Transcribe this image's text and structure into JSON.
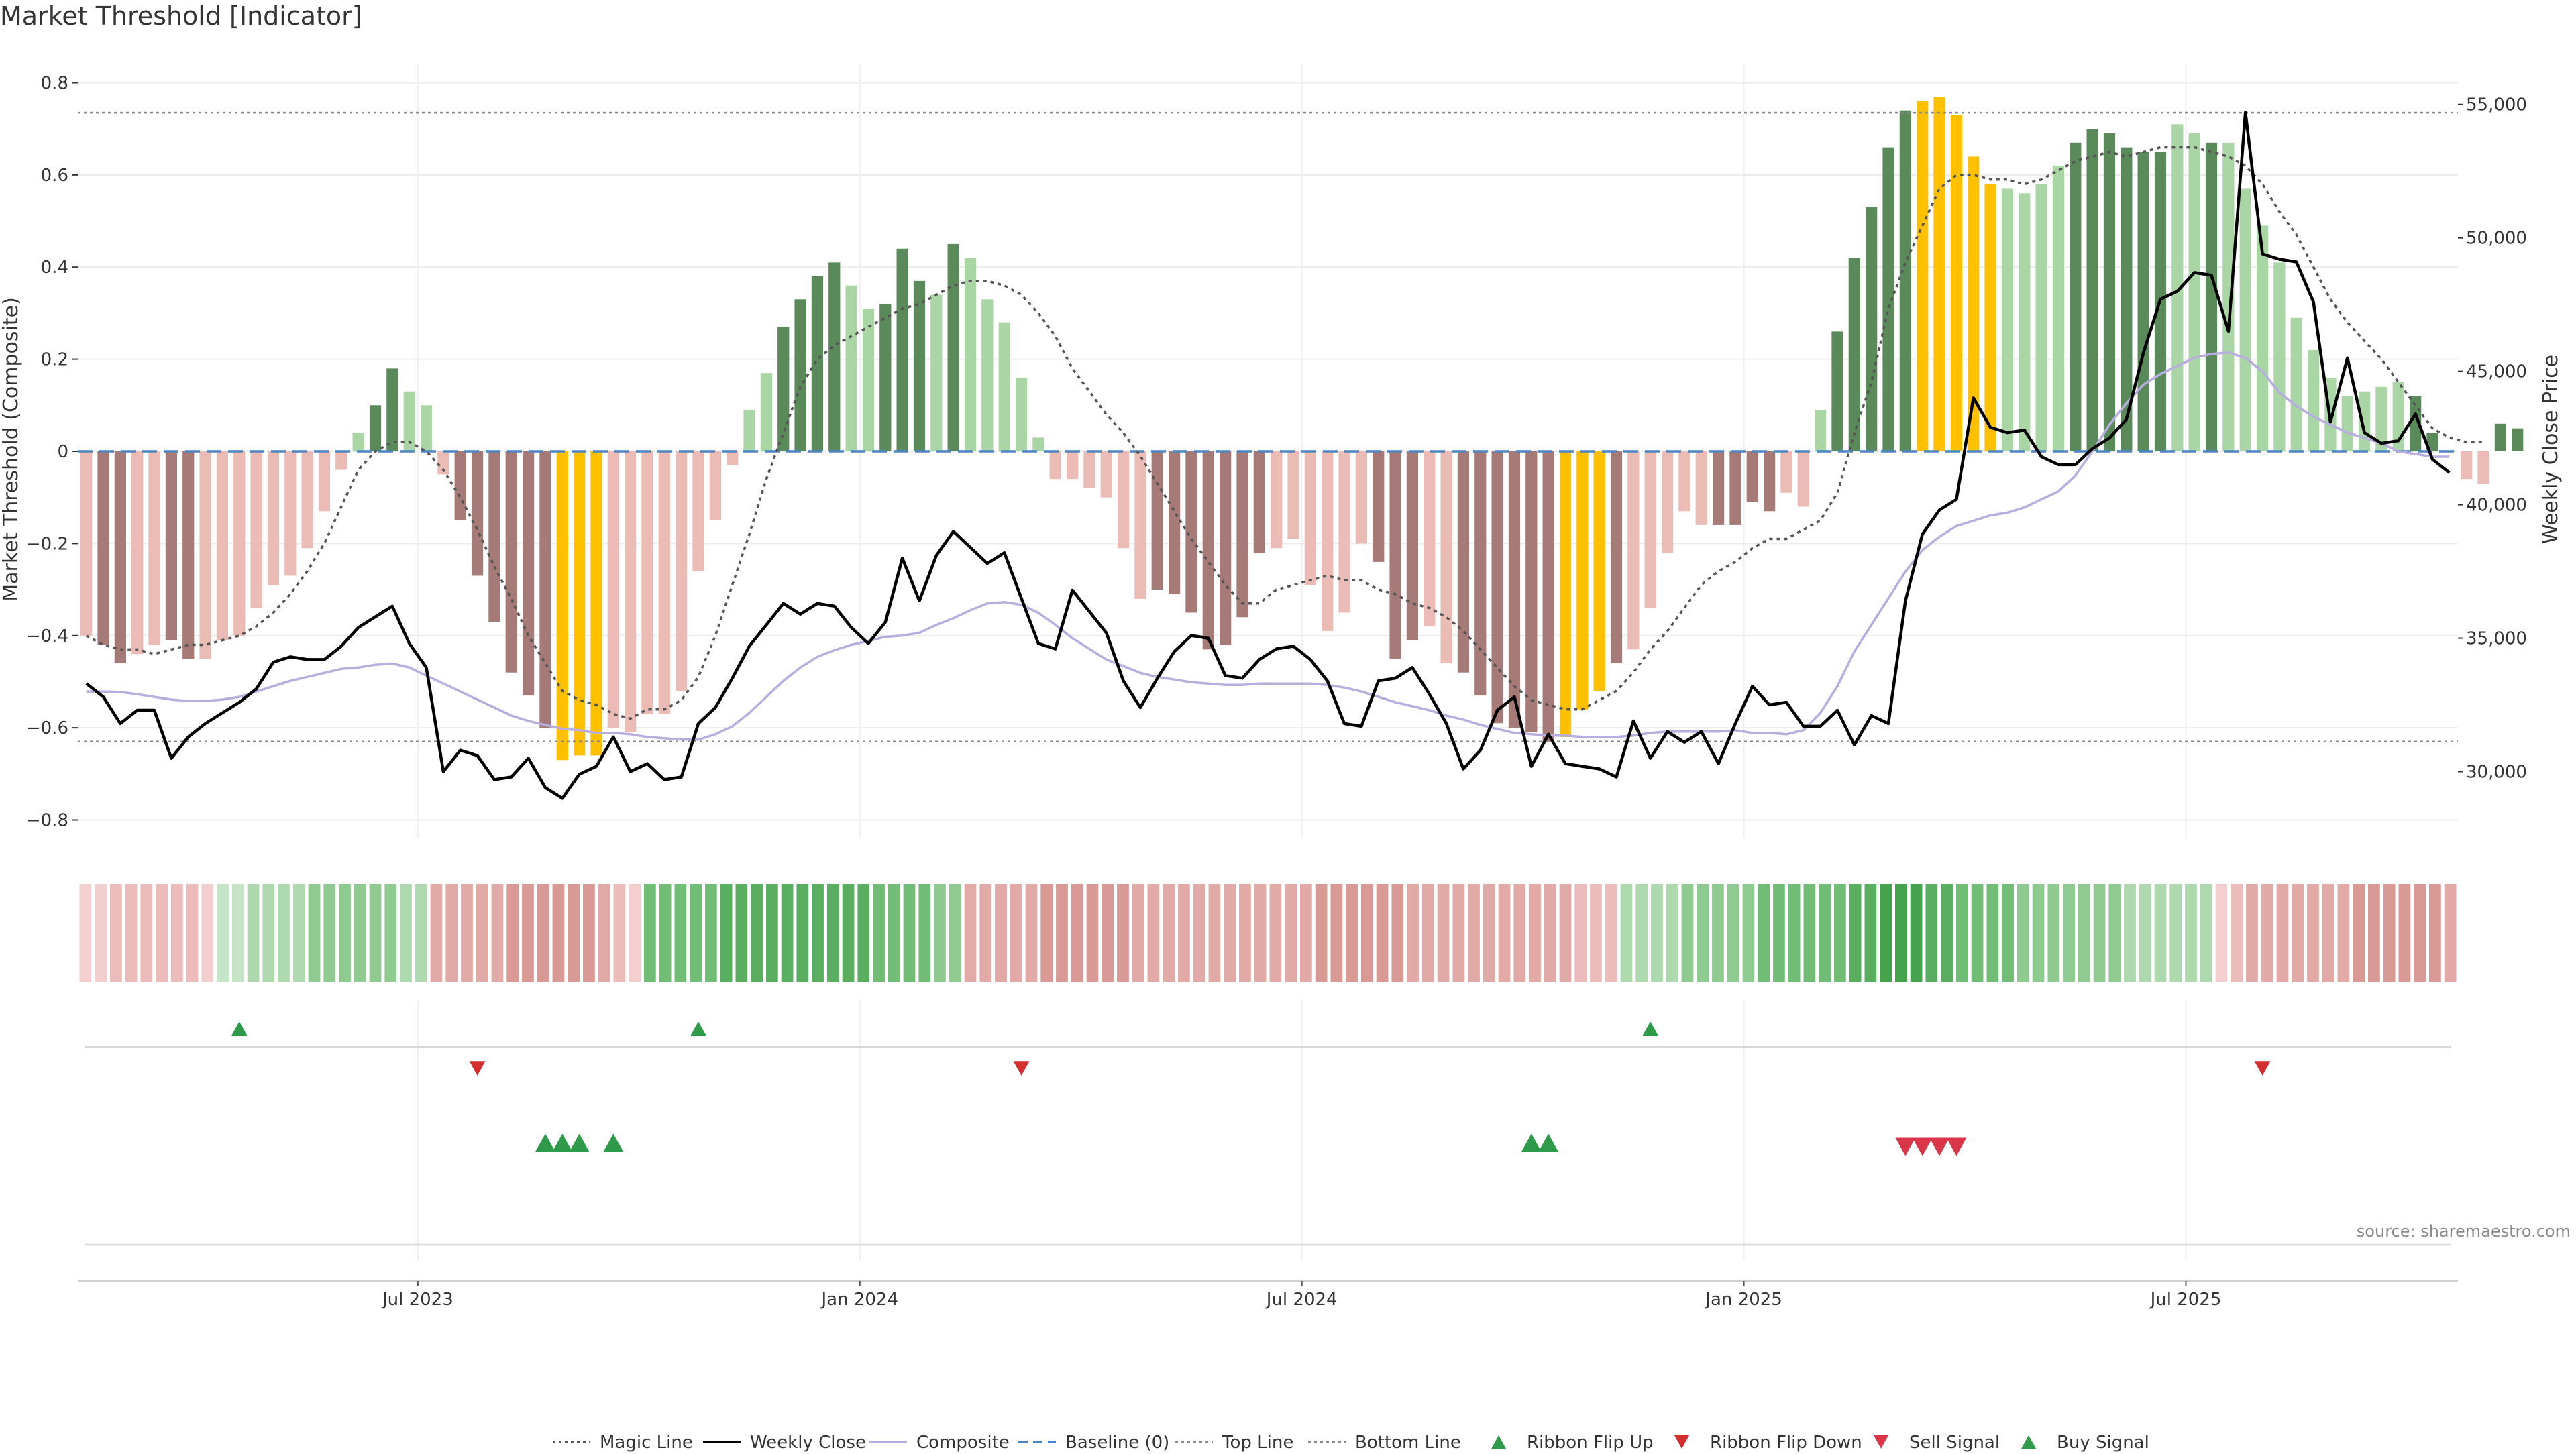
{
  "title": "Market Threshold [Indicator]",
  "source": "source: sharemaestro.com",
  "colors": {
    "strong_up": "#5a8a5a",
    "weak_up": "#a9d6a4",
    "strong_down": "#a67a76",
    "weak_down": "#ebbcb6",
    "extreme": "#ffc000",
    "weekly_close": "#000000",
    "composite": "#b7aedf",
    "magic_line": "#555555",
    "baseline": "#4a86c6",
    "threshold": "#888888",
    "flip_up": "#2e9a4a",
    "flip_down": "#d32f2f",
    "sell": "#d9364a",
    "buy": "#2e9a4a"
  },
  "chart_data": {
    "type": "bar",
    "title": "Market Threshold [Indicator]",
    "ylabel_left": "Market Threshold (Composite)",
    "ylabel_right": "Weekly Close Price",
    "ylim_left": [
      -0.84,
      0.84
    ],
    "ylim_right": [
      27500,
      56500
    ],
    "left_ticks": [
      "0.8",
      "0.6",
      "0.4",
      "0.2",
      "0",
      "−0.2",
      "−0.4",
      "−0.6",
      "−0.8"
    ],
    "left_tick_values": [
      0.8,
      0.6,
      0.4,
      0.2,
      0,
      -0.2,
      -0.4,
      -0.6,
      -0.8
    ],
    "right_ticks": [
      "55,000",
      "50,000",
      "45,000",
      "40,000",
      "35,000",
      "30,000"
    ],
    "right_tick_values": [
      55000,
      50000,
      45000,
      40000,
      35000,
      30000
    ],
    "top_line": 0.735,
    "bottom_line": -0.63,
    "baseline": 0,
    "x_start": "2023-03-03",
    "x_end": "2025-11-07",
    "weeks": 140,
    "x_ticks": [
      {
        "label": "Jul 2023",
        "week": 19.5
      },
      {
        "label": "Jan 2024",
        "week": 45.5
      },
      {
        "label": "Jul 2024",
        "week": 71.5
      },
      {
        "label": "Jan 2025",
        "week": 97.5
      },
      {
        "label": "Jul 2025",
        "week": 123.5
      }
    ],
    "composite_bars": [
      -0.4,
      -0.42,
      -0.46,
      -0.44,
      -0.42,
      -0.41,
      -0.45,
      -0.45,
      -0.41,
      -0.4,
      -0.34,
      -0.29,
      -0.27,
      -0.21,
      -0.13,
      -0.04,
      0.04,
      0.1,
      0.18,
      0.13,
      0.1,
      -0.05,
      -0.15,
      -0.27,
      -0.37,
      -0.48,
      -0.53,
      -0.6,
      -0.67,
      -0.66,
      -0.66,
      -0.6,
      -0.61,
      -0.57,
      -0.57,
      -0.52,
      -0.26,
      -0.15,
      -0.03,
      0.09,
      0.17,
      0.27,
      0.33,
      0.38,
      0.41,
      0.36,
      0.31,
      0.32,
      0.44,
      0.37,
      0.34,
      0.45,
      0.42,
      0.33,
      0.28,
      0.16,
      0.03,
      -0.06,
      -0.06,
      -0.08,
      -0.1,
      -0.21,
      -0.32,
      -0.3,
      -0.31,
      -0.35,
      -0.43,
      -0.42,
      -0.36,
      -0.22,
      -0.21,
      -0.19,
      -0.29,
      -0.39,
      -0.35,
      -0.2,
      -0.24,
      -0.45,
      -0.41,
      -0.38,
      -0.46,
      -0.48,
      -0.53,
      -0.59,
      -0.6,
      -0.61,
      -0.63,
      -0.62,
      -0.56,
      -0.52,
      -0.46,
      -0.43,
      -0.34,
      -0.22,
      -0.13,
      -0.16,
      -0.16,
      -0.16,
      -0.11,
      -0.13,
      -0.09,
      -0.12,
      0.09,
      0.26,
      0.42,
      0.53,
      0.66,
      0.74,
      0.76,
      0.77,
      0.73,
      0.64,
      0.58,
      0.57,
      0.56,
      0.58,
      0.62,
      0.67,
      0.7,
      0.69,
      0.66,
      0.65,
      0.65,
      0.71,
      0.69,
      0.67,
      0.67,
      0.57,
      0.49,
      0.41,
      0.29,
      0.22,
      0.16,
      0.12,
      0.13,
      0.14,
      0.15,
      0.12,
      0.04,
      0.0,
      -0.06,
      -0.07,
      0.06,
      0.05
    ],
    "bar_classes": "WSSWWSSWWWWWWWWWWSSWWWSSSSSSEEEWWWWWWWWWWSSSSWWSSSWSWWWWWWWWWWWSSSSSSSWWWWWWSSSWWSSSSSSEEESWWWWWSSSSWWWSSSSSEEEEEWWWWSSSSSSWWSWWWWWWWWWWWSSWWWSSS",
    "weekly_close": [
      33300,
      32800,
      31800,
      32300,
      32300,
      30500,
      31300,
      31800,
      32200,
      32600,
      33100,
      34100,
      34300,
      34200,
      34200,
      34700,
      35400,
      35800,
      36200,
      34800,
      33900,
      30000,
      30800,
      30600,
      29700,
      29800,
      30500,
      29400,
      29000,
      29900,
      30200,
      31300,
      30000,
      30300,
      29700,
      29800,
      31800,
      32400,
      33500,
      34700,
      35500,
      36300,
      35900,
      36300,
      36200,
      35400,
      34800,
      35600,
      38000,
      36400,
      38100,
      39000,
      38400,
      37800,
      38200,
      36500,
      34800,
      34600,
      36800,
      36000,
      35200,
      33400,
      32400,
      33500,
      34500,
      35100,
      35000,
      33600,
      33500,
      34200,
      34600,
      34700,
      34200,
      33400,
      31800,
      31700,
      33400,
      33500,
      33900,
      32900,
      31800,
      30100,
      30800,
      32300,
      32800,
      30200,
      31400,
      30300,
      30200,
      30100,
      29800,
      31900,
      30500,
      31500,
      31100,
      31500,
      30300,
      31800,
      33200,
      32500,
      32600,
      31700,
      31700,
      32300,
      31000,
      32100,
      31800,
      36400,
      38900,
      39800,
      40200,
      44000,
      42900,
      42700,
      42800,
      41800,
      41500,
      41500,
      42100,
      42500,
      43200,
      45700,
      47700,
      48000,
      48700,
      48600,
      46500,
      54700,
      49400,
      49200,
      49100,
      47600,
      43100,
      45500,
      42700,
      42300,
      42400,
      43400,
      41700,
      41200
    ],
    "composite_line": [
      33000,
      33000,
      32980,
      32900,
      32800,
      32700,
      32650,
      32650,
      32700,
      32800,
      33000,
      33200,
      33400,
      33550,
      33700,
      33850,
      33900,
      34000,
      34050,
      33900,
      33600,
      33300,
      33000,
      32700,
      32400,
      32100,
      31900,
      31750,
      31600,
      31550,
      31450,
      31450,
      31400,
      31300,
      31250,
      31200,
      31200,
      31400,
      31700,
      32200,
      32800,
      33400,
      33900,
      34300,
      34550,
      34750,
      34900,
      35050,
      35100,
      35200,
      35500,
      35750,
      36050,
      36300,
      36350,
      36250,
      35950,
      35500,
      35000,
      34600,
      34200,
      33950,
      33700,
      33550,
      33450,
      33350,
      33300,
      33250,
      33250,
      33300,
      33300,
      33300,
      33300,
      33250,
      33150,
      33000,
      32800,
      32600,
      32450,
      32300,
      32100,
      31950,
      31750,
      31600,
      31450,
      31400,
      31350,
      31350,
      31300,
      31300,
      31300,
      31350,
      31450,
      31500,
      31500,
      31500,
      31500,
      31550,
      31450,
      31450,
      31400,
      31550,
      32200,
      33200,
      34500,
      35500,
      36500,
      37500,
      38300,
      38800,
      39200,
      39400,
      39600,
      39700,
      39900,
      40200,
      40500,
      41100,
      42000,
      43000,
      43800,
      44500,
      44900,
      45200,
      45500,
      45650,
      45700,
      45500,
      45000,
      44200,
      43700,
      43300,
      43000,
      42700,
      42500,
      42300,
      42000,
      41900,
      41800,
      41800
    ],
    "magic_line": [
      -0.4,
      -0.42,
      -0.43,
      -0.43,
      -0.44,
      -0.43,
      -0.42,
      -0.42,
      -0.41,
      -0.4,
      -0.38,
      -0.35,
      -0.31,
      -0.26,
      -0.2,
      -0.12,
      -0.04,
      0.0,
      0.02,
      0.02,
      0.0,
      -0.04,
      -0.1,
      -0.17,
      -0.25,
      -0.32,
      -0.4,
      -0.46,
      -0.52,
      -0.54,
      -0.55,
      -0.57,
      -0.58,
      -0.56,
      -0.56,
      -0.54,
      -0.49,
      -0.4,
      -0.29,
      -0.18,
      -0.06,
      0.04,
      0.14,
      0.2,
      0.23,
      0.25,
      0.27,
      0.29,
      0.31,
      0.32,
      0.34,
      0.36,
      0.37,
      0.37,
      0.36,
      0.34,
      0.3,
      0.25,
      0.18,
      0.13,
      0.08,
      0.04,
      -0.01,
      -0.07,
      -0.13,
      -0.19,
      -0.24,
      -0.29,
      -0.33,
      -0.33,
      -0.3,
      -0.29,
      -0.28,
      -0.27,
      -0.28,
      -0.28,
      -0.3,
      -0.31,
      -0.33,
      -0.34,
      -0.36,
      -0.39,
      -0.43,
      -0.47,
      -0.51,
      -0.54,
      -0.55,
      -0.56,
      -0.56,
      -0.54,
      -0.52,
      -0.48,
      -0.43,
      -0.39,
      -0.34,
      -0.29,
      -0.26,
      -0.24,
      -0.21,
      -0.19,
      -0.19,
      -0.17,
      -0.15,
      -0.09,
      0.04,
      0.15,
      0.31,
      0.41,
      0.49,
      0.57,
      0.6,
      0.6,
      0.59,
      0.59,
      0.58,
      0.59,
      0.61,
      0.63,
      0.64,
      0.65,
      0.64,
      0.65,
      0.66,
      0.66,
      0.66,
      0.65,
      0.64,
      0.62,
      0.58,
      0.52,
      0.47,
      0.4,
      0.33,
      0.28,
      0.24,
      0.2,
      0.15,
      0.1,
      0.05,
      0.03,
      0.02,
      0.02
    ]
  },
  "heat_strip": {
    "values": [
      -1,
      -1,
      -2,
      -2,
      -2,
      -2,
      -2,
      -2,
      -1,
      1,
      1,
      2,
      2,
      2,
      2,
      3,
      3,
      3,
      3,
      3,
      3,
      2,
      2,
      -3,
      -3,
      -3,
      -3,
      -3,
      -4,
      -4,
      -4,
      -4,
      -4,
      -4,
      -3,
      -2,
      -1,
      4,
      4,
      4,
      4,
      4,
      5,
      5,
      5,
      5,
      5,
      5,
      5,
      5,
      5,
      5,
      4,
      4,
      4,
      4,
      3,
      3,
      -3,
      -3,
      -3,
      -3,
      -3,
      -4,
      -4,
      -4,
      -4,
      -4,
      -4,
      -3,
      -3,
      -3,
      -3,
      -3,
      -3,
      -3,
      -3,
      -3,
      -3,
      -3,
      -3,
      -4,
      -4,
      -4,
      -4,
      -4,
      -4,
      -3,
      -3,
      -3,
      -3,
      -3,
      -3,
      -3,
      -3,
      -3,
      -3,
      -3,
      -2,
      -2,
      -2,
      2,
      2,
      2,
      2,
      3,
      3,
      3,
      3,
      3,
      4,
      4,
      4,
      4,
      4,
      4,
      5,
      5,
      6,
      6,
      6,
      5,
      5,
      4,
      4,
      4,
      4,
      3,
      3,
      3,
      3,
      3,
      3,
      3,
      2,
      2,
      2,
      2,
      2,
      2,
      -1,
      -2,
      -3,
      -3,
      -3,
      -3,
      -3,
      -3,
      -3,
      -4,
      -4,
      -4,
      -4,
      -4,
      -4,
      -3
    ]
  },
  "markers": {
    "ribbon_flip_up": [
      9,
      36,
      92
    ],
    "ribbon_flip_down": [
      23,
      55,
      128
    ],
    "buy_signal": [
      27,
      28,
      29,
      31,
      85,
      86
    ],
    "sell_signal": [
      107,
      108,
      109,
      110
    ]
  },
  "legend": [
    {
      "label": "Magic Line",
      "icon": "dotted-line-icon"
    },
    {
      "label": "Weekly Close",
      "icon": "solid-line-icon"
    },
    {
      "label": "Composite",
      "icon": "lavender-line-icon"
    },
    {
      "label": "Baseline (0)",
      "icon": "dashed-blue-line-icon"
    },
    {
      "label": "Top Line",
      "icon": "dotted-gray-line-icon"
    },
    {
      "label": "Bottom Line",
      "icon": "dotted-gray-line-icon"
    },
    {
      "label": "Ribbon Flip Up",
      "icon": "triangle-up-icon"
    },
    {
      "label": "Ribbon Flip Down",
      "icon": "triangle-down-icon"
    },
    {
      "label": "Sell Signal",
      "icon": "triangle-down-icon"
    },
    {
      "label": "Buy Signal",
      "icon": "triangle-up-icon"
    }
  ]
}
